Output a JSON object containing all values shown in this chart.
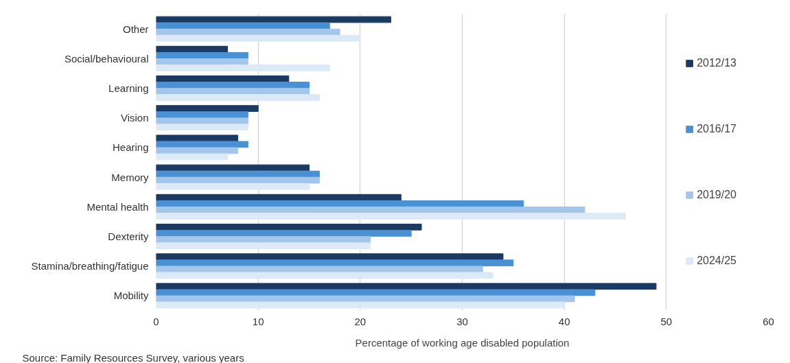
{
  "chart_data": {
    "type": "bar",
    "orientation": "horizontal",
    "xlabel": "Percentage of working age disabled population",
    "categories": [
      "Other",
      "Social/behavioural",
      "Learning",
      "Vision",
      "Hearing",
      "Memory",
      "Mental health",
      "Dexterity",
      "Stamina/breathing/fatigue",
      "Mobility"
    ],
    "series": [
      {
        "name": "2012/13",
        "color": "#1a3a63",
        "values": [
          23,
          7,
          13,
          10,
          8,
          15,
          24,
          26,
          34,
          49
        ]
      },
      {
        "name": "2016/17",
        "color": "#4a90d4",
        "values": [
          17,
          9,
          15,
          9,
          9,
          16,
          36,
          25,
          35,
          43
        ]
      },
      {
        "name": "2019/20",
        "color": "#a3c6ea",
        "values": [
          18,
          9,
          15,
          9,
          8,
          16,
          42,
          21,
          32,
          41
        ]
      },
      {
        "name": "2024/25",
        "color": "#dce9f7",
        "values": [
          20,
          17,
          16,
          9,
          7,
          15,
          46,
          21,
          33,
          40
        ]
      }
    ],
    "xlim": [
      0,
      60
    ],
    "xticks": [
      0,
      10,
      20,
      30,
      40,
      50,
      60
    ],
    "grid": "x",
    "legend": "right",
    "annotations": [
      "Source: Family Resources Survey, various years"
    ]
  }
}
